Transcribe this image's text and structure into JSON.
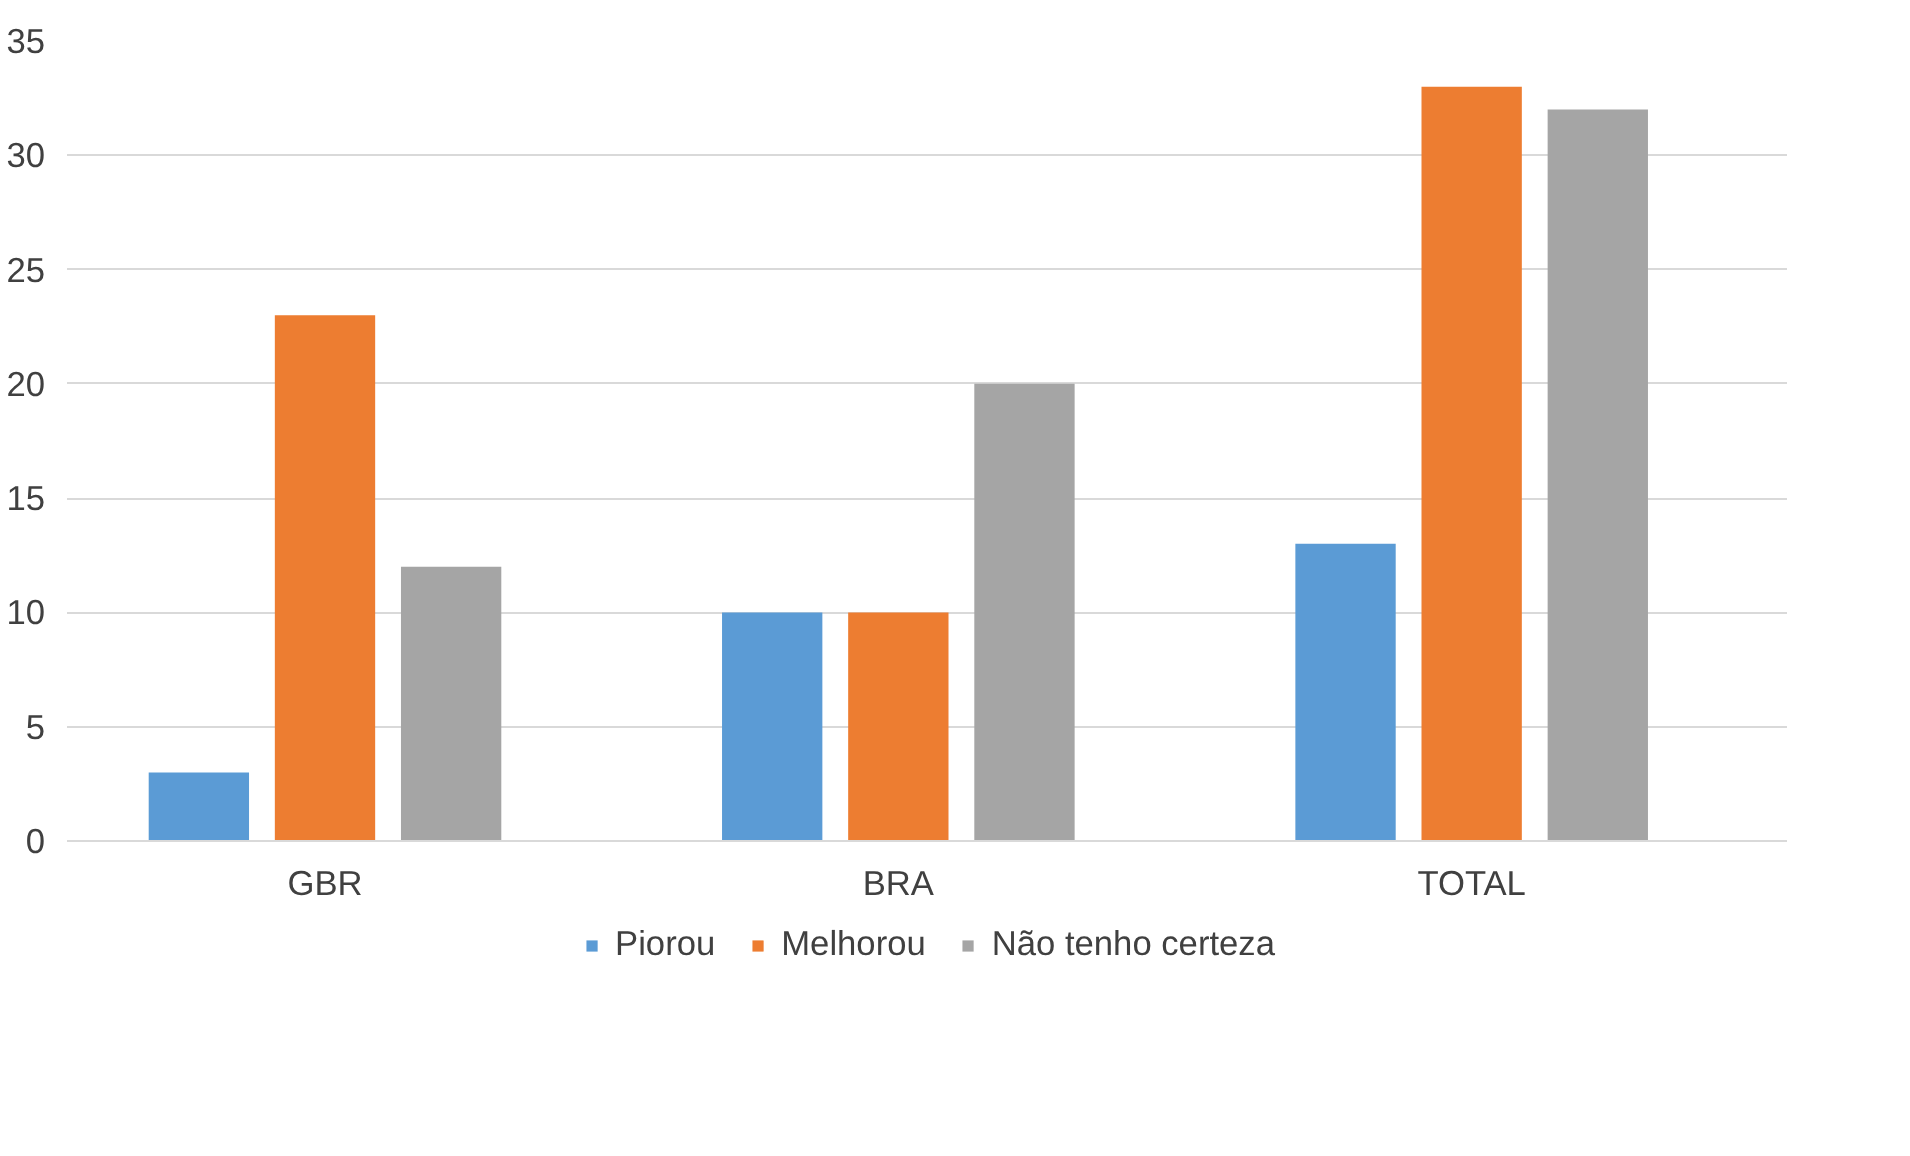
{
  "chart_data": {
    "type": "bar",
    "categories": [
      "GBR",
      "BRA",
      "TOTAL"
    ],
    "series": [
      {
        "name": "Piorou",
        "color": "#5b9bd5",
        "values": [
          3,
          10,
          13
        ]
      },
      {
        "name": "Melhorou",
        "color": "#ed7d31",
        "values": [
          23,
          10,
          33
        ]
      },
      {
        "name": "Não tenho certeza",
        "color": "#a5a5a5",
        "values": [
          12,
          20,
          32
        ]
      }
    ],
    "ylim": [
      0,
      35
    ],
    "yticks": [
      0,
      5,
      10,
      15,
      20,
      25,
      30,
      35
    ],
    "grid": "y",
    "legend": "bottom"
  }
}
